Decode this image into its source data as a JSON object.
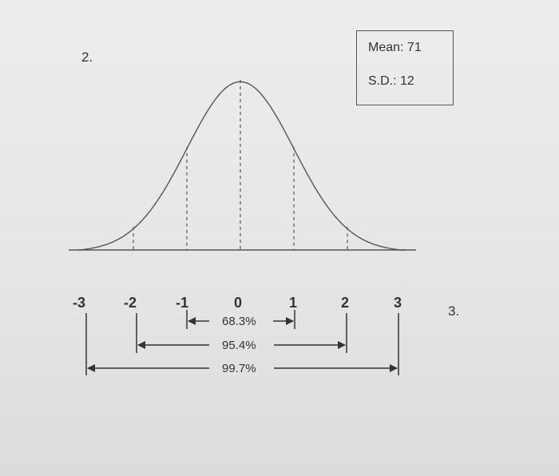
{
  "question_labels": {
    "left": "2.",
    "right": "3."
  },
  "stats": {
    "mean": "Mean: 71",
    "sd": "S.D.: 12"
  },
  "z_labels": [
    "-3",
    "-2",
    "-1",
    "0",
    "1",
    "2",
    "3"
  ],
  "percent_labels": {
    "one_sd": "68.3%",
    "two_sd": "95.4%",
    "three_sd": "99.7%"
  },
  "colors": {
    "ink": "#333333",
    "curve": "#555555"
  }
}
